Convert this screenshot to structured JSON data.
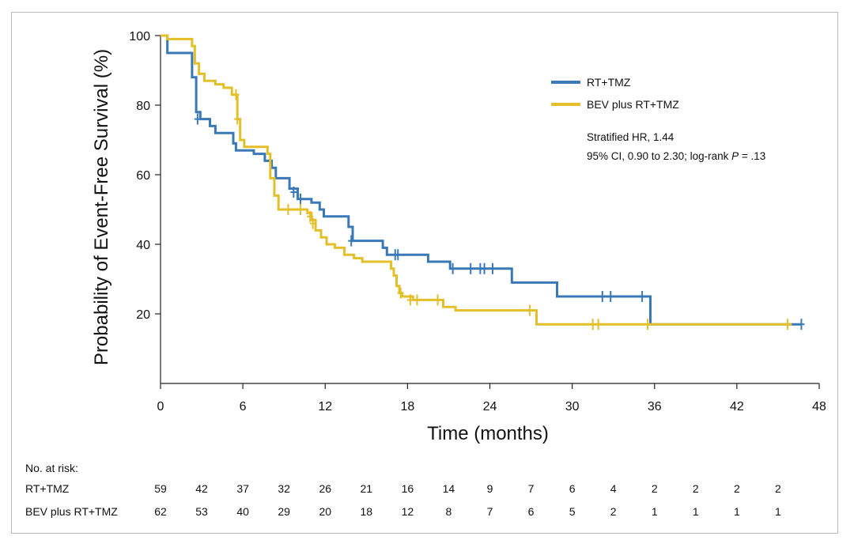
{
  "chart_data": {
    "type": "line",
    "subtype": "kaplan-meier",
    "xlabel": "Time (months)",
    "ylabel": "Probability of Event-Free Survival (%)",
    "xlim": [
      0,
      48
    ],
    "ylim": [
      0,
      100
    ],
    "xticks": [
      0,
      6,
      12,
      18,
      24,
      30,
      36,
      42,
      48
    ],
    "yticks": [
      20,
      40,
      60,
      80,
      100
    ],
    "grid": false,
    "legend_position": "top-right",
    "colors": {
      "RT+TMZ": "#3a78b7",
      "BEV plus RT+TMZ": "#e3bf29"
    },
    "series": [
      {
        "name": "RT+TMZ",
        "color": "#3a78b7",
        "step": [
          [
            0,
            100
          ],
          [
            0.5,
            95
          ],
          [
            2,
            95
          ],
          [
            2.3,
            88
          ],
          [
            2.6,
            78
          ],
          [
            2.9,
            76
          ],
          [
            3.6,
            74
          ],
          [
            4,
            72
          ],
          [
            5.3,
            69
          ],
          [
            5.5,
            67
          ],
          [
            6.8,
            66
          ],
          [
            7.6,
            64
          ],
          [
            8.1,
            62
          ],
          [
            8.4,
            59
          ],
          [
            9.4,
            56
          ],
          [
            10,
            53
          ],
          [
            11,
            52
          ],
          [
            11.6,
            50
          ],
          [
            11.9,
            48
          ],
          [
            13.7,
            45
          ],
          [
            14,
            41
          ],
          [
            16.2,
            39
          ],
          [
            16.5,
            37
          ],
          [
            19.5,
            35
          ],
          [
            21.1,
            33
          ],
          [
            25.6,
            29
          ],
          [
            28.9,
            25
          ],
          [
            35.6,
            25
          ],
          [
            35.7,
            17
          ],
          [
            46.7,
            17
          ]
        ],
        "censors": [
          [
            2.7,
            76
          ],
          [
            9.7,
            55
          ],
          [
            10.2,
            53
          ],
          [
            13.9,
            41
          ],
          [
            17.1,
            37
          ],
          [
            17.3,
            37
          ],
          [
            21.3,
            33
          ],
          [
            22.6,
            33
          ],
          [
            23.3,
            33
          ],
          [
            23.6,
            33
          ],
          [
            24.2,
            33
          ],
          [
            32.2,
            25
          ],
          [
            32.8,
            25
          ],
          [
            35.1,
            25
          ],
          [
            46.7,
            17
          ]
        ]
      },
      {
        "name": "BEV plus RT+TMZ",
        "color": "#e3bf29",
        "step": [
          [
            0,
            100
          ],
          [
            0.5,
            99
          ],
          [
            2.3,
            97
          ],
          [
            2.5,
            92
          ],
          [
            2.8,
            89
          ],
          [
            3.2,
            87
          ],
          [
            4,
            86
          ],
          [
            4.6,
            85
          ],
          [
            5.2,
            83
          ],
          [
            5.6,
            76
          ],
          [
            5.8,
            70
          ],
          [
            6.1,
            68
          ],
          [
            7.8,
            66
          ],
          [
            8,
            59
          ],
          [
            8.3,
            54
          ],
          [
            8.6,
            50
          ],
          [
            10.7,
            49
          ],
          [
            11,
            47
          ],
          [
            11.3,
            44
          ],
          [
            11.7,
            42
          ],
          [
            12.1,
            40
          ],
          [
            12.7,
            39
          ],
          [
            13.4,
            37
          ],
          [
            14.1,
            36
          ],
          [
            14.7,
            35
          ],
          [
            16.8,
            33
          ],
          [
            17,
            31
          ],
          [
            17.2,
            28
          ],
          [
            17.4,
            26
          ],
          [
            17.6,
            25
          ],
          [
            18.4,
            24
          ],
          [
            20.6,
            22
          ],
          [
            21.5,
            21
          ],
          [
            27.4,
            17
          ],
          [
            35.6,
            17
          ],
          [
            46,
            17
          ]
        ],
        "censors": [
          [
            5.5,
            83
          ],
          [
            5.6,
            76
          ],
          [
            9.3,
            50
          ],
          [
            10.2,
            50
          ],
          [
            10.9,
            48
          ],
          [
            11.1,
            46
          ],
          [
            17.5,
            26
          ],
          [
            18.2,
            24
          ],
          [
            18.7,
            24
          ],
          [
            20.2,
            24
          ],
          [
            26.9,
            21
          ],
          [
            31.5,
            17
          ],
          [
            31.9,
            17
          ],
          [
            35.5,
            17
          ],
          [
            45.7,
            17
          ]
        ]
      }
    ],
    "annotations": [
      "Stratified HR, 1.44",
      "95% CI, 0.90 to 2.30; log-rank P = .13"
    ]
  },
  "legend": {
    "items": [
      "RT+TMZ",
      "BEV plus RT+TMZ"
    ]
  },
  "annotation": {
    "line1": "Stratified HR, 1.44",
    "line2_prefix": "95% CI, 0.90 to 2.30; log-rank ",
    "line2_p": "P",
    "line2_suffix": " = .13"
  },
  "risk_table": {
    "header": "No. at risk:",
    "times": [
      0,
      3,
      6,
      9,
      12,
      15,
      18,
      21,
      24,
      27,
      30,
      33,
      36,
      39,
      42,
      45
    ],
    "rows": [
      {
        "label": "RT+TMZ",
        "values": [
          "59",
          "42",
          "37",
          "32",
          "26",
          "21",
          "16",
          "14",
          "9",
          "7",
          "6",
          "4",
          "2",
          "2",
          "2",
          "2"
        ]
      },
      {
        "label": "BEV plus RT+TMZ",
        "values": [
          "62",
          "53",
          "40",
          "29",
          "20",
          "18",
          "12",
          "8",
          "7",
          "6",
          "5",
          "2",
          "1",
          "1",
          "1",
          "1"
        ]
      }
    ]
  }
}
